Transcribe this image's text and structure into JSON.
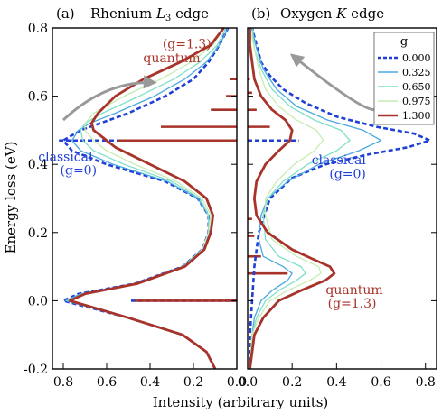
{
  "chart_data": [
    {
      "type": "line",
      "title": "Rhenium L3 edge",
      "panel_label": "(a)",
      "title_parts": {
        "pre": "Rhenium ",
        "italic": "L",
        "sub": "3",
        "post": " edge"
      },
      "orientation": "horizontal-intensity",
      "xlabel": "Intensity (arbitrary units)",
      "ylabel": "Energy loss (eV)",
      "xlim": [
        0.85,
        0.0
      ],
      "ylim": [
        -0.2,
        0.8
      ],
      "x_reversed": true,
      "xticks": [
        0.8,
        0.6,
        0.4,
        0.2,
        0.0
      ],
      "xtick_labels": [
        "0.8",
        "0.6",
        "0.4",
        "0.2",
        "0.0"
      ],
      "yticks": [
        -0.2,
        0.0,
        0.2,
        0.4,
        0.6,
        0.8
      ],
      "ytick_labels": [
        "-0.2",
        "0.0",
        "0.2",
        "0.4",
        "0.6",
        "0.8"
      ],
      "grid": false,
      "series": [
        {
          "name": "0.000",
          "color": "#1f3fd6",
          "style": "dashed",
          "energy": [
            -0.2,
            -0.15,
            -0.1,
            -0.05,
            0.0,
            0.02,
            0.05,
            0.1,
            0.15,
            0.2,
            0.25,
            0.3,
            0.35,
            0.4,
            0.44,
            0.47,
            0.5,
            0.55,
            0.6,
            0.65,
            0.7,
            0.75,
            0.8
          ],
          "intensity": [
            0.1,
            0.14,
            0.25,
            0.5,
            0.8,
            0.73,
            0.47,
            0.25,
            0.16,
            0.13,
            0.13,
            0.18,
            0.33,
            0.6,
            0.76,
            0.8,
            0.72,
            0.5,
            0.33,
            0.2,
            0.13,
            0.08,
            0.04
          ]
        },
        {
          "name": "0.325",
          "color": "#4aa8e0",
          "style": "solid",
          "energy": [
            -0.2,
            -0.15,
            -0.1,
            -0.05,
            0.0,
            0.02,
            0.05,
            0.1,
            0.15,
            0.2,
            0.25,
            0.3,
            0.35,
            0.4,
            0.44,
            0.47,
            0.5,
            0.52,
            0.55,
            0.6,
            0.65,
            0.7,
            0.75,
            0.8
          ],
          "intensity": [
            0.1,
            0.14,
            0.25,
            0.5,
            0.79,
            0.72,
            0.47,
            0.25,
            0.16,
            0.13,
            0.13,
            0.18,
            0.32,
            0.57,
            0.72,
            0.76,
            0.73,
            0.68,
            0.56,
            0.38,
            0.24,
            0.14,
            0.08,
            0.04
          ]
        },
        {
          "name": "0.650",
          "color": "#7fe0c8",
          "style": "solid",
          "energy": [
            -0.2,
            -0.15,
            -0.1,
            -0.05,
            0.0,
            0.02,
            0.05,
            0.1,
            0.15,
            0.2,
            0.25,
            0.3,
            0.35,
            0.4,
            0.44,
            0.47,
            0.5,
            0.52,
            0.55,
            0.6,
            0.65,
            0.7,
            0.75,
            0.8
          ],
          "intensity": [
            0.1,
            0.14,
            0.25,
            0.5,
            0.78,
            0.71,
            0.46,
            0.25,
            0.16,
            0.13,
            0.13,
            0.17,
            0.3,
            0.52,
            0.66,
            0.71,
            0.72,
            0.7,
            0.62,
            0.45,
            0.29,
            0.17,
            0.09,
            0.05
          ]
        },
        {
          "name": "0.975",
          "color": "#c6ecb0",
          "style": "solid",
          "energy": [
            -0.2,
            -0.15,
            -0.1,
            -0.05,
            0.0,
            0.02,
            0.05,
            0.1,
            0.15,
            0.2,
            0.25,
            0.3,
            0.35,
            0.4,
            0.44,
            0.47,
            0.5,
            0.52,
            0.55,
            0.6,
            0.65,
            0.7,
            0.75,
            0.8
          ],
          "intensity": [
            0.1,
            0.14,
            0.25,
            0.5,
            0.77,
            0.7,
            0.46,
            0.24,
            0.16,
            0.13,
            0.12,
            0.16,
            0.28,
            0.47,
            0.6,
            0.66,
            0.7,
            0.7,
            0.66,
            0.52,
            0.35,
            0.21,
            0.11,
            0.06
          ]
        },
        {
          "name": "1.300",
          "color": "#a8332a",
          "style": "solid",
          "energy": [
            -0.2,
            -0.15,
            -0.1,
            -0.05,
            0.0,
            0.02,
            0.05,
            0.1,
            0.15,
            0.2,
            0.25,
            0.3,
            0.35,
            0.4,
            0.45,
            0.5,
            0.52,
            0.55,
            0.6,
            0.65,
            0.7,
            0.75,
            0.8
          ],
          "intensity": [
            0.1,
            0.14,
            0.25,
            0.5,
            0.77,
            0.7,
            0.46,
            0.24,
            0.15,
            0.12,
            0.11,
            0.14,
            0.24,
            0.4,
            0.56,
            0.66,
            0.67,
            0.64,
            0.56,
            0.43,
            0.26,
            0.12,
            0.06
          ]
        }
      ],
      "sticks": [
        {
          "name": "classical",
          "color": "#1f3fd6",
          "style": "dashed",
          "points": [
            {
              "energy": 0.0,
              "intensity": 0.49
            },
            {
              "energy": 0.47,
              "intensity": 0.82
            }
          ]
        },
        {
          "name": "quantum",
          "color": "#a8332a",
          "style": "solid",
          "points": [
            {
              "energy": 0.0,
              "intensity": 0.47
            },
            {
              "energy": 0.47,
              "intensity": 0.55
            },
            {
              "energy": 0.51,
              "intensity": 0.35
            },
            {
              "energy": 0.56,
              "intensity": 0.12
            },
            {
              "energy": 0.6,
              "intensity": 0.05
            },
            {
              "energy": 0.65,
              "intensity": 0.03
            }
          ]
        }
      ],
      "annotations": [
        {
          "text": "(g=1.3)",
          "color": "#a8332a",
          "energy": 0.74,
          "intensity": 0.23
        },
        {
          "text": "quantum",
          "color": "#a8332a",
          "energy": 0.7,
          "intensity": 0.3
        },
        {
          "text": "classical",
          "color": "#1f3fd6",
          "energy": 0.41,
          "intensity": 0.79
        },
        {
          "text": "(g=0)",
          "color": "#1f3fd6",
          "energy": 0.37,
          "intensity": 0.73
        }
      ],
      "arrow": {
        "color": "#999999",
        "from": {
          "energy": 0.53,
          "intensity": 0.8
        },
        "to": {
          "energy": 0.64,
          "intensity": 0.38
        }
      }
    },
    {
      "type": "line",
      "title": "Oxygen K edge",
      "panel_label": "(b)",
      "title_parts": {
        "pre": "Oxygen ",
        "italic": "K",
        "sub": "",
        "post": " edge"
      },
      "orientation": "horizontal-intensity",
      "xlabel": "Intensity (arbitrary units)",
      "ylabel": "Energy loss (eV)",
      "xlim": [
        0.0,
        0.85
      ],
      "ylim": [
        -0.2,
        0.8
      ],
      "x_reversed": false,
      "xticks": [
        0.0,
        0.2,
        0.4,
        0.6,
        0.8
      ],
      "xtick_labels": [
        "0.0",
        "0.2",
        "0.4",
        "0.6",
        "0.8"
      ],
      "yticks": [
        -0.2,
        0.0,
        0.2,
        0.4,
        0.6,
        0.8
      ],
      "ytick_labels": [
        "-0.2",
        "0.0",
        "0.2",
        "0.4",
        "0.6",
        "0.8"
      ],
      "grid": false,
      "series": [
        {
          "name": "0.000",
          "color": "#1f3fd6",
          "style": "dashed",
          "energy": [
            -0.2,
            -0.1,
            0.0,
            0.1,
            0.2,
            0.3,
            0.36,
            0.4,
            0.43,
            0.45,
            0.47,
            0.49,
            0.51,
            0.54,
            0.58,
            0.62,
            0.66,
            0.7,
            0.75,
            0.8
          ],
          "intensity": [
            0.01,
            0.01,
            0.02,
            0.03,
            0.05,
            0.1,
            0.2,
            0.35,
            0.55,
            0.72,
            0.82,
            0.75,
            0.58,
            0.4,
            0.26,
            0.16,
            0.1,
            0.06,
            0.04,
            0.02
          ]
        },
        {
          "name": "0.325",
          "color": "#4aa8e0",
          "style": "solid",
          "energy": [
            -0.2,
            -0.1,
            -0.05,
            0.0,
            0.03,
            0.06,
            0.08,
            0.1,
            0.13,
            0.18,
            0.25,
            0.3,
            0.35,
            0.4,
            0.44,
            0.47,
            0.5,
            0.53,
            0.57,
            0.62,
            0.68,
            0.74,
            0.8
          ],
          "intensity": [
            0.01,
            0.02,
            0.03,
            0.06,
            0.11,
            0.18,
            0.2,
            0.16,
            0.07,
            0.05,
            0.06,
            0.09,
            0.18,
            0.32,
            0.5,
            0.6,
            0.52,
            0.36,
            0.22,
            0.13,
            0.07,
            0.04,
            0.02
          ]
        },
        {
          "name": "0.650",
          "color": "#7fe0c8",
          "style": "solid",
          "energy": [
            -0.2,
            -0.1,
            -0.05,
            0.0,
            0.03,
            0.06,
            0.08,
            0.1,
            0.13,
            0.18,
            0.25,
            0.3,
            0.35,
            0.4,
            0.44,
            0.47,
            0.5,
            0.53,
            0.57,
            0.62,
            0.68,
            0.74,
            0.8
          ],
          "intensity": [
            0.01,
            0.02,
            0.04,
            0.08,
            0.14,
            0.22,
            0.26,
            0.24,
            0.14,
            0.08,
            0.07,
            0.09,
            0.16,
            0.27,
            0.4,
            0.46,
            0.42,
            0.3,
            0.19,
            0.11,
            0.06,
            0.03,
            0.02
          ]
        },
        {
          "name": "0.975",
          "color": "#c6ecb0",
          "style": "solid",
          "energy": [
            -0.2,
            -0.1,
            -0.05,
            0.0,
            0.03,
            0.06,
            0.08,
            0.1,
            0.13,
            0.18,
            0.25,
            0.3,
            0.35,
            0.4,
            0.44,
            0.47,
            0.5,
            0.53,
            0.57,
            0.62,
            0.68,
            0.74,
            0.8
          ],
          "intensity": [
            0.01,
            0.02,
            0.05,
            0.1,
            0.18,
            0.28,
            0.33,
            0.32,
            0.22,
            0.11,
            0.08,
            0.08,
            0.13,
            0.21,
            0.3,
            0.34,
            0.31,
            0.22,
            0.14,
            0.08,
            0.05,
            0.03,
            0.01
          ]
        },
        {
          "name": "1.300",
          "color": "#a8332a",
          "style": "solid",
          "energy": [
            -0.2,
            -0.1,
            -0.05,
            0.0,
            0.03,
            0.06,
            0.08,
            0.1,
            0.12,
            0.15,
            0.2,
            0.25,
            0.3,
            0.35,
            0.4,
            0.44,
            0.47,
            0.5,
            0.53,
            0.56,
            0.6,
            0.65,
            0.7,
            0.75,
            0.8
          ],
          "intensity": [
            0.01,
            0.03,
            0.07,
            0.14,
            0.24,
            0.35,
            0.39,
            0.37,
            0.3,
            0.2,
            0.09,
            0.04,
            0.03,
            0.04,
            0.08,
            0.14,
            0.19,
            0.2,
            0.17,
            0.11,
            0.06,
            0.03,
            0.02,
            0.01,
            0.01
          ]
        }
      ],
      "sticks": [
        {
          "name": "classical",
          "color": "#1f3fd6",
          "style": "dashed",
          "points": [
            {
              "energy": 0.47,
              "intensity": 0.23
            }
          ]
        },
        {
          "name": "quantum",
          "color": "#a8332a",
          "style": "solid",
          "points": [
            {
              "energy": 0.08,
              "intensity": 0.18
            },
            {
              "energy": 0.13,
              "intensity": 0.06
            },
            {
              "energy": 0.19,
              "intensity": 0.03
            },
            {
              "energy": 0.24,
              "intensity": 0.02
            },
            {
              "energy": 0.51,
              "intensity": 0.1
            },
            {
              "energy": 0.56,
              "intensity": 0.04
            },
            {
              "energy": 0.61,
              "intensity": 0.02
            },
            {
              "energy": 0.65,
              "intensity": 0.01
            }
          ]
        }
      ],
      "annotations": [
        {
          "text": "classical",
          "color": "#1f3fd6",
          "energy": 0.4,
          "intensity": 0.41
        },
        {
          "text": "(g=0)",
          "color": "#1f3fd6",
          "energy": 0.36,
          "intensity": 0.45
        },
        {
          "text": "quantum",
          "color": "#a8332a",
          "energy": 0.02,
          "intensity": 0.48
        },
        {
          "text": "(g=1.3)",
          "color": "#a8332a",
          "energy": -0.02,
          "intensity": 0.47
        }
      ],
      "arrow": {
        "color": "#999999",
        "from": {
          "energy": 0.56,
          "intensity": 0.57
        },
        "to": {
          "energy": 0.72,
          "intensity": 0.2
        }
      },
      "legend": {
        "title": "g",
        "placement": "top-right",
        "entries": [
          {
            "label": "0.000",
            "color": "#1f3fd6",
            "style": "dashed"
          },
          {
            "label": "0.325",
            "color": "#4aa8e0",
            "style": "solid"
          },
          {
            "label": "0.650",
            "color": "#7fe0c8",
            "style": "solid"
          },
          {
            "label": "0.975",
            "color": "#c6ecb0",
            "style": "solid"
          },
          {
            "label": "1.300",
            "color": "#a8332a",
            "style": "solid"
          }
        ]
      }
    }
  ],
  "colors": {
    "classical": "#1f3fd6",
    "quantum": "#a8332a",
    "arrow": "#999999",
    "axes": "#000000"
  }
}
